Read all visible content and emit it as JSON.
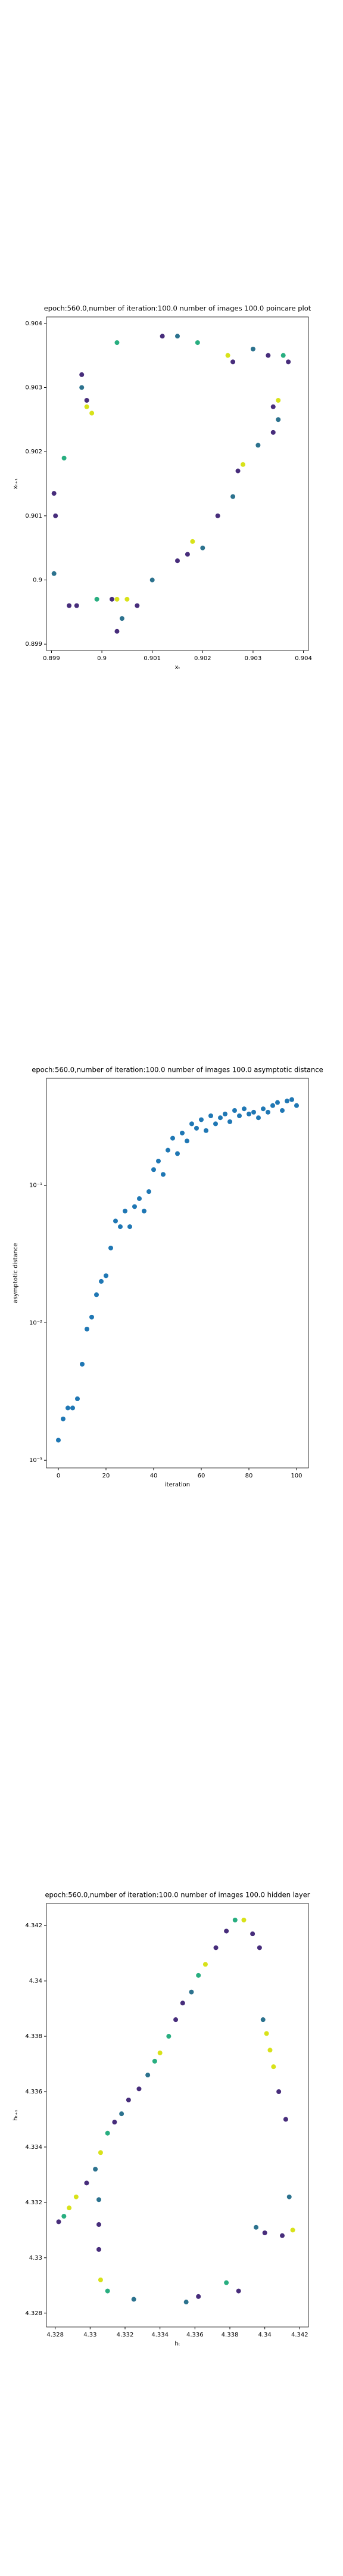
{
  "chart_data": [
    {
      "type": "scatter",
      "title": "epoch:560.0,number of iteration:100.0 number of images 100.0 poincare plot",
      "xlabel": "xₜ",
      "ylabel": "xₜ₊₁",
      "xlim": [
        0.8989,
        0.9041
      ],
      "ylim": [
        0.8989,
        0.9041
      ],
      "xticks": [
        0.899,
        0.9,
        0.901,
        0.902,
        0.903,
        0.904
      ],
      "yticks": [
        0.899,
        0.9,
        0.901,
        0.902,
        0.903,
        0.904
      ],
      "x": [
        0.89905,
        0.89908,
        0.89925,
        0.89905,
        0.89935,
        0.8995,
        0.8996,
        0.8996,
        0.8997,
        0.8998,
        0.8997,
        0.9003,
        0.9012,
        0.9015,
        0.9019,
        0.9025,
        0.9026,
        0.903,
        0.9033,
        0.9036,
        0.9037,
        0.9035,
        0.9034,
        0.9035,
        0.9034,
        0.9031,
        0.9028,
        0.9027,
        0.9026,
        0.9023,
        0.902,
        0.9018,
        0.9017,
        0.9015,
        0.901,
        0.9007,
        0.9005,
        0.9003,
        0.9004,
        0.9003,
        0.9002,
        0.8999
      ],
      "y": [
        0.90135,
        0.901,
        0.9019,
        0.9001,
        0.8996,
        0.8996,
        0.9032,
        0.903,
        0.9027,
        0.9026,
        0.9028,
        0.9037,
        0.9038,
        0.9038,
        0.9037,
        0.9035,
        0.9034,
        0.9036,
        0.9035,
        0.9035,
        0.9034,
        0.9028,
        0.9027,
        0.9025,
        0.9023,
        0.9021,
        0.9018,
        0.9017,
        0.9013,
        0.901,
        0.9005,
        0.9006,
        0.9004,
        0.9003,
        0.9,
        0.8996,
        0.8997,
        0.8997,
        0.8994,
        0.8992,
        0.8997,
        0.8997
      ],
      "colors": [
        "#472d7b",
        "#472d7b",
        "#28ae80",
        "#2c728e",
        "#472d7b",
        "#472d7b",
        "#472d7b",
        "#2c728e",
        "#d8e219",
        "#d8e219",
        "#472d7b",
        "#28ae80",
        "#472d7b",
        "#2c728e",
        "#28ae80",
        "#d8e219",
        "#472d7b",
        "#2c728e",
        "#472d7b",
        "#28ae80",
        "#472d7b",
        "#d8e219",
        "#472d7b",
        "#2c728e",
        "#472d7b",
        "#2c728e",
        "#d8e219",
        "#472d7b",
        "#2c728e",
        "#472d7b",
        "#2c728e",
        "#d8e219",
        "#472d7b",
        "#472d7b",
        "#2c728e",
        "#472d7b",
        "#d8e219",
        "#d8e219",
        "#2c728e",
        "#472d7b",
        "#472d7b",
        "#28ae80"
      ]
    },
    {
      "type": "scatter",
      "log_y": true,
      "color": "#1f77b4",
      "title": "epoch:560.0,number of iteration:100.0  number of images 100.0 asymptotic distance",
      "xlabel": "iteration",
      "ylabel": "asymptotic distance",
      "xlim": [
        -5,
        105
      ],
      "ylim": [
        0.00088,
        0.6
      ],
      "xticks": [
        0,
        20,
        40,
        60,
        80,
        100
      ],
      "yticks": [
        {
          "value": 0.1,
          "label": "10⁻¹"
        },
        {
          "value": 0.01,
          "label": "10⁻²"
        },
        {
          "value": 0.001,
          "label": "10⁻³"
        }
      ],
      "x": [
        0,
        2,
        4,
        6,
        8,
        10,
        12,
        14,
        16,
        18,
        20,
        22,
        24,
        26,
        28,
        30,
        32,
        34,
        36,
        38,
        40,
        42,
        44,
        46,
        48,
        50,
        52,
        54,
        56,
        58,
        60,
        62,
        64,
        66,
        68,
        70,
        72,
        74,
        76,
        78,
        80,
        82,
        84,
        86,
        88,
        90,
        92,
        94,
        96,
        98,
        100
      ],
      "y": [
        0.0014,
        0.002,
        0.0024,
        0.0024,
        0.0028,
        0.005,
        0.009,
        0.011,
        0.016,
        0.02,
        0.022,
        0.035,
        0.055,
        0.05,
        0.065,
        0.05,
        0.07,
        0.08,
        0.065,
        0.09,
        0.13,
        0.15,
        0.12,
        0.18,
        0.22,
        0.17,
        0.24,
        0.21,
        0.28,
        0.26,
        0.3,
        0.25,
        0.32,
        0.28,
        0.31,
        0.33,
        0.29,
        0.35,
        0.32,
        0.36,
        0.33,
        0.34,
        0.31,
        0.36,
        0.34,
        0.38,
        0.4,
        0.35,
        0.41,
        0.42,
        0.38
      ]
    },
    {
      "type": "scatter",
      "title": "epoch:560.0,number of iteration:100.0  number of images 100.0 hidden layer",
      "xlabel": "hₜ",
      "ylabel": "hₜ₊₁",
      "xlim": [
        4.3275,
        4.3425
      ],
      "ylim": [
        4.3275,
        4.3428
      ],
      "xticks": [
        4.328,
        4.33,
        4.332,
        4.334,
        4.336,
        4.338,
        4.34,
        4.342
      ],
      "yticks": [
        4.328,
        4.33,
        4.332,
        4.334,
        4.336,
        4.338,
        4.34,
        4.342
      ],
      "x": [
        4.3282,
        4.3285,
        4.3288,
        4.3292,
        4.3298,
        4.3303,
        4.3306,
        4.331,
        4.3314,
        4.3318,
        4.3322,
        4.3328,
        4.3333,
        4.3337,
        4.334,
        4.3345,
        4.3349,
        4.3353,
        4.3358,
        4.3362,
        4.3366,
        4.3372,
        4.3378,
        4.3383,
        4.3388,
        4.3393,
        4.3397,
        4.3399,
        4.3401,
        4.3403,
        4.3405,
        4.3408,
        4.3412,
        4.3414,
        4.3416,
        4.341,
        4.34,
        4.3395,
        4.3385,
        4.3378,
        4.3362,
        4.3355,
        4.3325,
        4.331,
        4.3306,
        4.3305,
        4.3305,
        4.3305
      ],
      "y": [
        4.3313,
        4.3315,
        4.3318,
        4.3322,
        4.3327,
        4.3332,
        4.3338,
        4.3345,
        4.3349,
        4.3352,
        4.3357,
        4.3361,
        4.3366,
        4.3371,
        4.3374,
        4.338,
        4.3386,
        4.3392,
        4.3396,
        4.3402,
        4.3406,
        4.3412,
        4.3418,
        4.3422,
        4.3422,
        4.3417,
        4.3412,
        4.3386,
        4.3381,
        4.3375,
        4.3369,
        4.336,
        4.335,
        4.3322,
        4.331,
        4.3308,
        4.3309,
        4.3311,
        4.3288,
        4.3291,
        4.3286,
        4.3284,
        4.3285,
        4.3288,
        4.3292,
        4.3303,
        4.3312,
        4.3321
      ],
      "colors": [
        "#472d7b",
        "#28ae80",
        "#d8e219",
        "#d8e219",
        "#472d7b",
        "#2c728e",
        "#d8e219",
        "#28ae80",
        "#472d7b",
        "#2c728e",
        "#472d7b",
        "#472d7b",
        "#2c728e",
        "#28ae80",
        "#d8e219",
        "#28ae80",
        "#472d7b",
        "#472d7b",
        "#2c728e",
        "#28ae80",
        "#d8e219",
        "#472d7b",
        "#472d7b",
        "#28ae80",
        "#d8e219",
        "#472d7b",
        "#472d7b",
        "#2c728e",
        "#d8e219",
        "#d8e219",
        "#d8e219",
        "#472d7b",
        "#472d7b",
        "#2c728e",
        "#d8e219",
        "#472d7b",
        "#472d7b",
        "#2c728e",
        "#472d7b",
        "#28ae80",
        "#472d7b",
        "#2c728e",
        "#2c728e",
        "#28ae80",
        "#d8e219",
        "#472d7b",
        "#472d7b",
        "#2c728e"
      ]
    }
  ]
}
